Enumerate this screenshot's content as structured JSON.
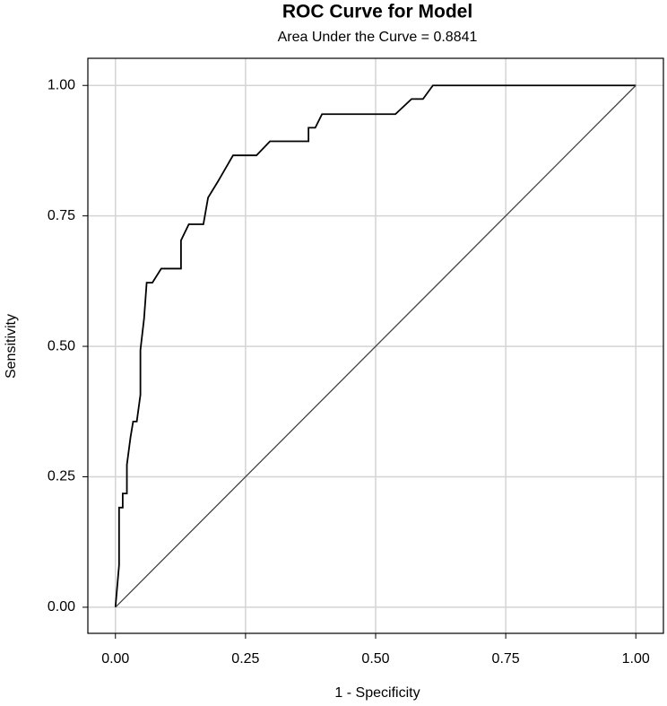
{
  "chart_data": {
    "type": "line",
    "title": "ROC Curve for Model",
    "subtitle": "Area Under the Curve = 0.8841",
    "xlabel": "1 - Specificity",
    "ylabel": "Sensitivity",
    "xlim": [
      -0.053,
      1.053
    ],
    "ylim": [
      -0.05,
      1.052
    ],
    "xticks": [
      {
        "value": 0,
        "label": "0.00"
      },
      {
        "value": 0.25,
        "label": "0.25"
      },
      {
        "value": 0.5,
        "label": "0.50"
      },
      {
        "value": 0.75,
        "label": "0.75"
      },
      {
        "value": 1,
        "label": "1.00"
      }
    ],
    "yticks": [
      {
        "value": 0,
        "label": "0.00"
      },
      {
        "value": 0.25,
        "label": "0.25"
      },
      {
        "value": 0.5,
        "label": "0.50"
      },
      {
        "value": 0.75,
        "label": "0.75"
      },
      {
        "value": 1,
        "label": "1.00"
      }
    ],
    "grid": true,
    "series": [
      {
        "color": "#000000",
        "x": [
          0,
          0.007,
          0.007,
          0.014,
          0.014,
          0.022,
          0.022,
          0.029,
          0.034,
          0.041,
          0.048,
          0.048,
          0.055,
          0.06,
          0.071,
          0.088,
          0.126,
          0.126,
          0.141,
          0.169,
          0.178,
          0.197,
          0.226,
          0.271,
          0.297,
          0.371,
          0.371,
          0.384,
          0.397,
          0.538,
          0.569,
          0.591,
          0.61,
          1
        ],
        "values": [
          0,
          0.081,
          0.191,
          0.191,
          0.218,
          0.218,
          0.273,
          0.326,
          0.356,
          0.356,
          0.407,
          0.493,
          0.553,
          0.622,
          0.622,
          0.649,
          0.649,
          0.703,
          0.734,
          0.734,
          0.785,
          0.816,
          0.866,
          0.866,
          0.893,
          0.893,
          0.919,
          0.919,
          0.945,
          0.945,
          0.974,
          0.974,
          1,
          1
        ]
      },
      {
        "color": "#444444",
        "x": [
          0,
          1
        ],
        "values": [
          0,
          1
        ]
      }
    ]
  }
}
